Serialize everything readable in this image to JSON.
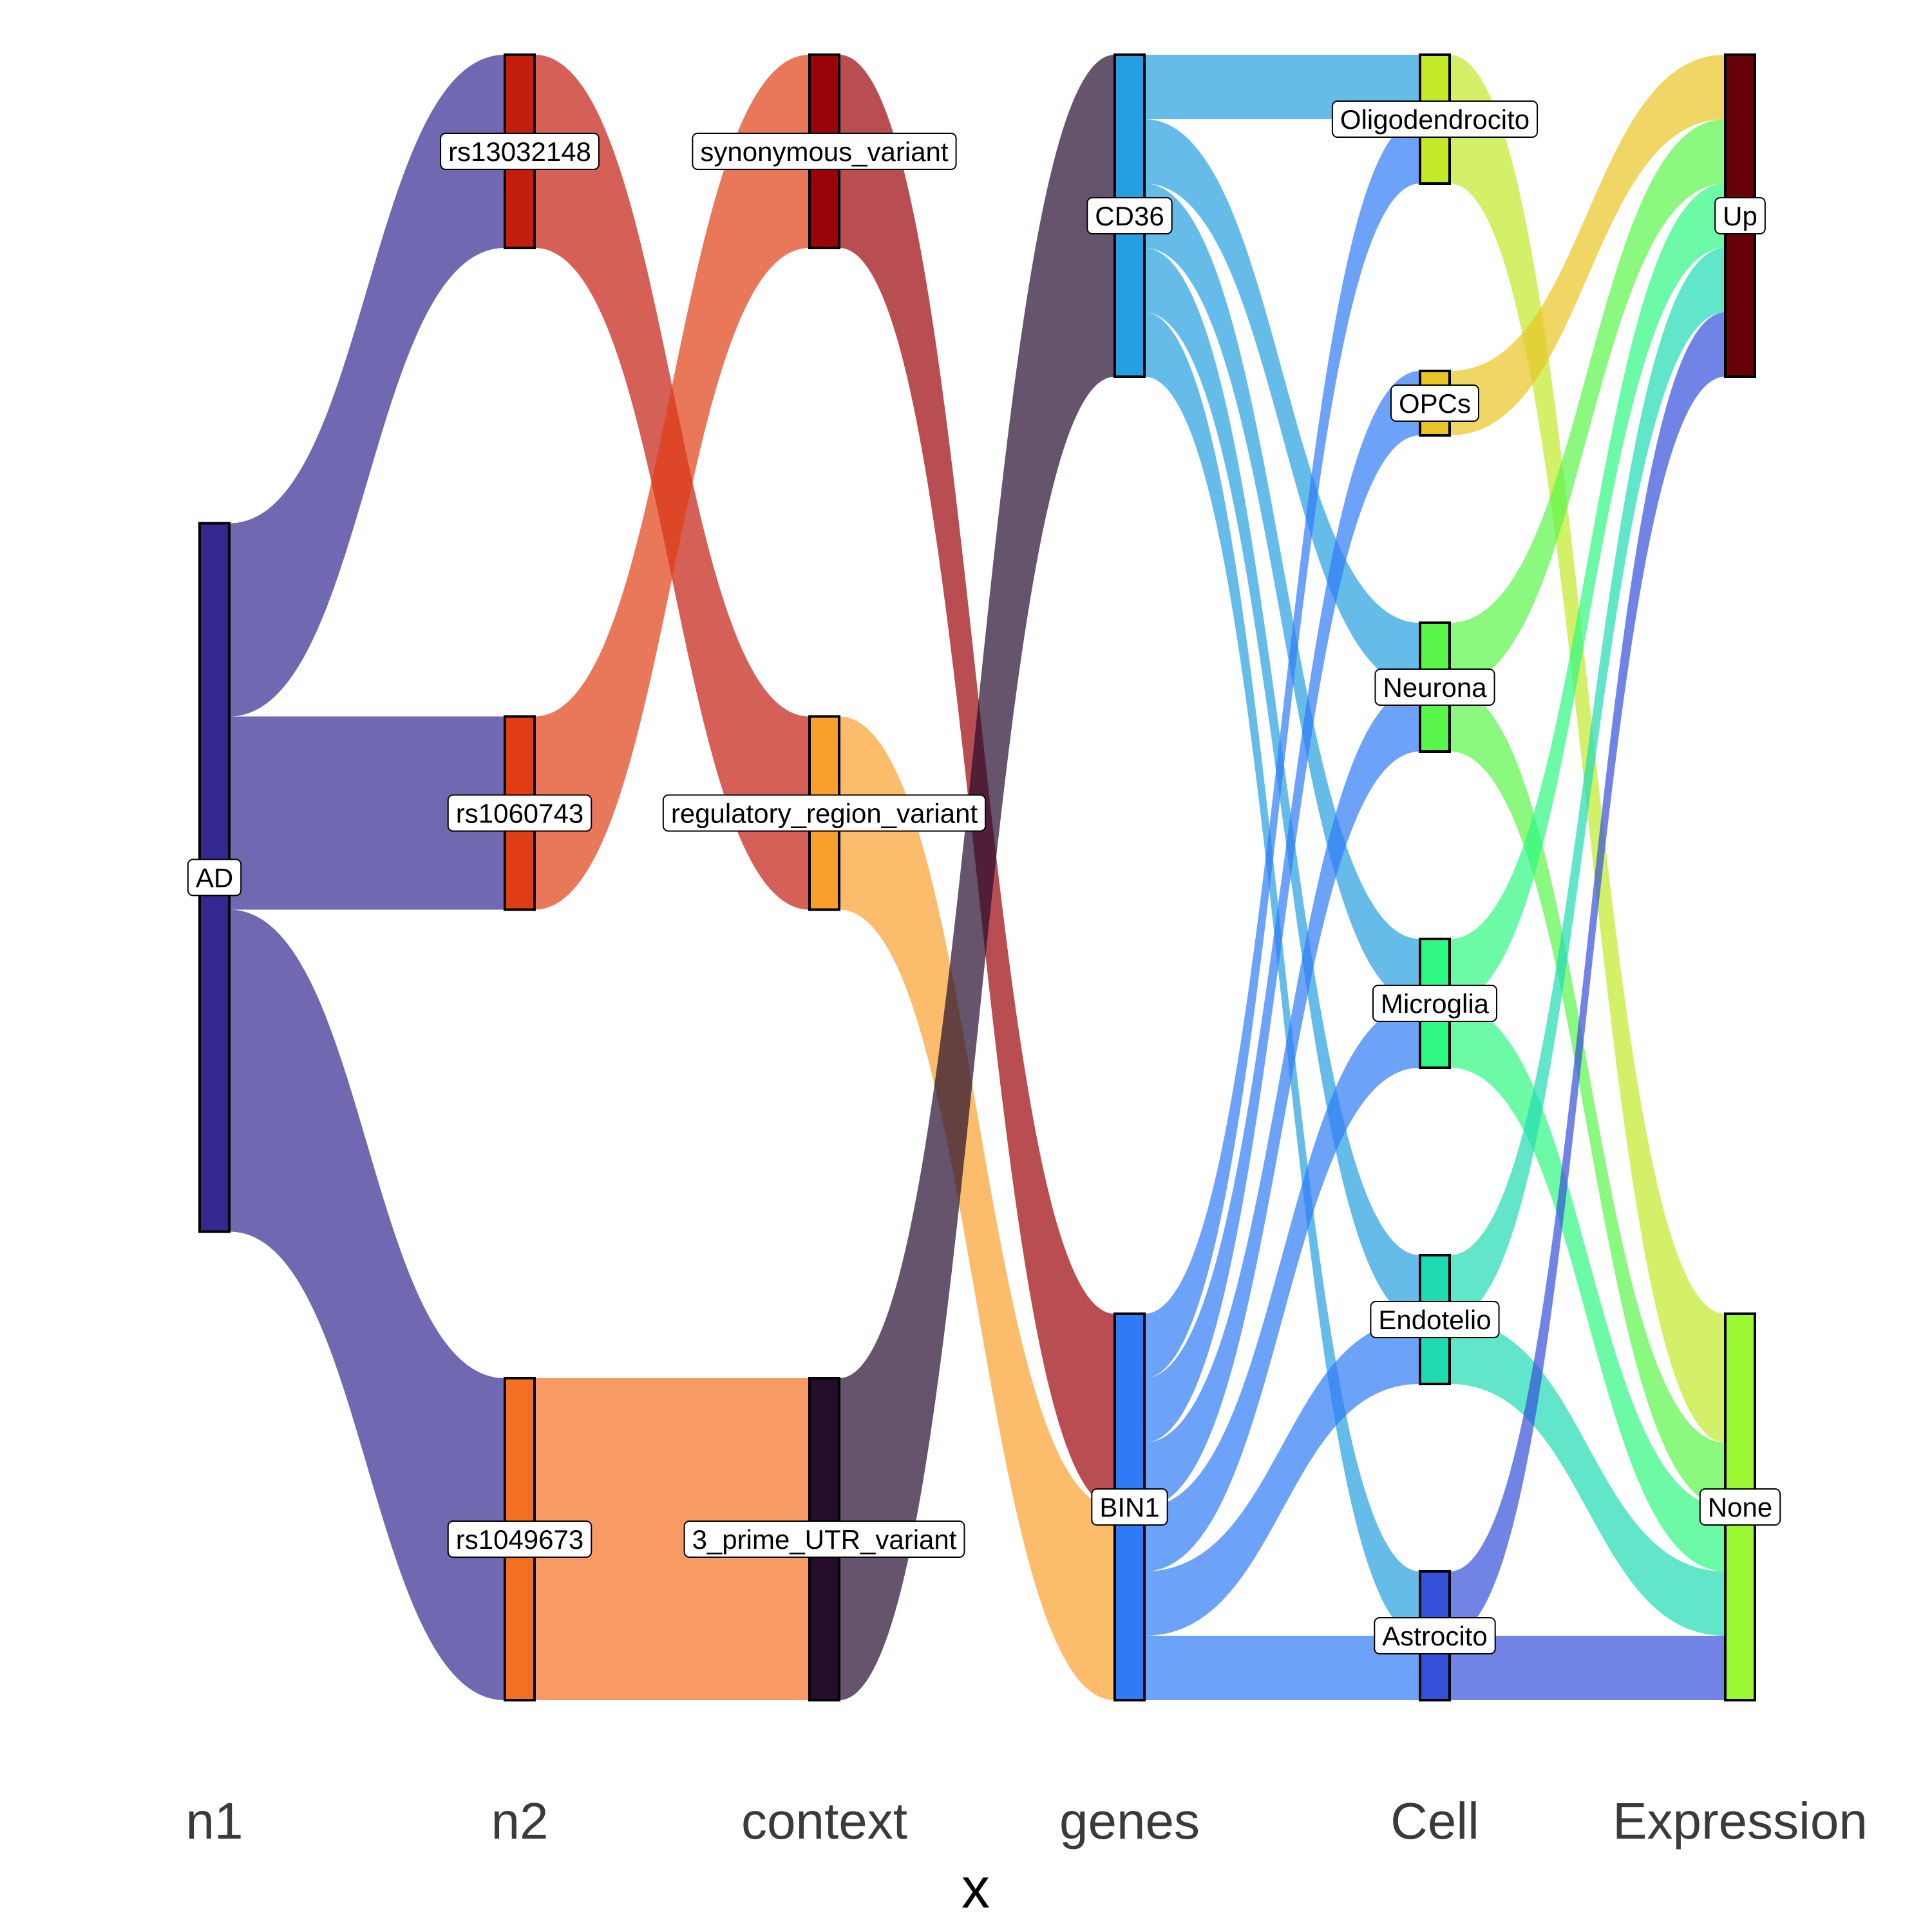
{
  "chart_data": {
    "type": "sankey",
    "xlabel": "x",
    "axes": [
      "n1",
      "n2",
      "context",
      "genes",
      "Cell",
      "Expression"
    ],
    "nodes": [
      {
        "id": "AD",
        "axis": 0,
        "label": "AD",
        "color": "#33288f"
      },
      {
        "id": "rs13032148",
        "axis": 1,
        "label": "rs13032148",
        "color": "#c31d0f"
      },
      {
        "id": "rs1060743",
        "axis": 1,
        "label": "rs1060743",
        "color": "#e03d14"
      },
      {
        "id": "rs1049673",
        "axis": 1,
        "label": "rs1049673",
        "color": "#f36f22"
      },
      {
        "id": "synonymous_variant",
        "axis": 2,
        "label": "synonymous_variant",
        "color": "#9a0307"
      },
      {
        "id": "regulatory_region_variant",
        "axis": 2,
        "label": "regulatory_region_variant",
        "color": "#f9a02c"
      },
      {
        "id": "3_prime_UTR_variant",
        "axis": 2,
        "label": "3_prime_UTR_variant",
        "color": "#230c2c"
      },
      {
        "id": "CD36",
        "axis": 3,
        "label": "CD36",
        "color": "#24a0e0"
      },
      {
        "id": "BIN1",
        "axis": 3,
        "label": "BIN1",
        "color": "#2f7bf7"
      },
      {
        "id": "Oligodendrocito",
        "axis": 4,
        "label": "Oligodendrocito",
        "color": "#c2ea28"
      },
      {
        "id": "OPCs",
        "axis": 4,
        "label": "OPCs",
        "color": "#e8c424"
      },
      {
        "id": "Neurona",
        "axis": 4,
        "label": "Neurona",
        "color": "#5af54a"
      },
      {
        "id": "Microglia",
        "axis": 4,
        "label": "Microglia",
        "color": "#2ef882"
      },
      {
        "id": "Endotelio",
        "axis": 4,
        "label": "Endotelio",
        "color": "#1fdbb4"
      },
      {
        "id": "Astrocito",
        "axis": 4,
        "label": "Astrocito",
        "color": "#3450da"
      },
      {
        "id": "Up",
        "axis": 5,
        "label": "Up",
        "color": "#650308"
      },
      {
        "id": "None",
        "axis": 5,
        "label": "None",
        "color": "#9af932"
      }
    ],
    "flows": [
      {
        "source": "AD",
        "target": "rs13032148",
        "value": 3,
        "color": "#33288f"
      },
      {
        "source": "AD",
        "target": "rs1060743",
        "value": 3,
        "color": "#33288f"
      },
      {
        "source": "AD",
        "target": "rs1049673",
        "value": 5,
        "color": "#33288f"
      },
      {
        "source": "rs13032148",
        "target": "regulatory_region_variant",
        "value": 3,
        "color": "#c31d0f"
      },
      {
        "source": "rs1060743",
        "target": "synonymous_variant",
        "value": 3,
        "color": "#e03d14"
      },
      {
        "source": "rs1049673",
        "target": "3_prime_UTR_variant",
        "value": 5,
        "color": "#f36f22"
      },
      {
        "source": "synonymous_variant",
        "target": "BIN1",
        "value": 3,
        "color": "#9a0307"
      },
      {
        "source": "regulatory_region_variant",
        "target": "BIN1",
        "value": 3,
        "color": "#f9a02c"
      },
      {
        "source": "3_prime_UTR_variant",
        "target": "CD36",
        "value": 5,
        "color": "#230c2c"
      },
      {
        "source": "CD36",
        "target": "Oligodendrocito",
        "value": 1,
        "color": "#24a0e0"
      },
      {
        "source": "CD36",
        "target": "Neurona",
        "value": 1,
        "color": "#24a0e0"
      },
      {
        "source": "CD36",
        "target": "Microglia",
        "value": 1,
        "color": "#24a0e0"
      },
      {
        "source": "CD36",
        "target": "Endotelio",
        "value": 1,
        "color": "#24a0e0"
      },
      {
        "source": "CD36",
        "target": "Astrocito",
        "value": 1,
        "color": "#24a0e0"
      },
      {
        "source": "BIN1",
        "target": "Oligodendrocito",
        "value": 1,
        "color": "#2f7bf7"
      },
      {
        "source": "BIN1",
        "target": "OPCs",
        "value": 1,
        "color": "#2f7bf7"
      },
      {
        "source": "BIN1",
        "target": "Neurona",
        "value": 1,
        "color": "#2f7bf7"
      },
      {
        "source": "BIN1",
        "target": "Microglia",
        "value": 1,
        "color": "#2f7bf7"
      },
      {
        "source": "BIN1",
        "target": "Endotelio",
        "value": 1,
        "color": "#2f7bf7"
      },
      {
        "source": "BIN1",
        "target": "Astrocito",
        "value": 1,
        "color": "#2f7bf7"
      },
      {
        "source": "Oligodendrocito",
        "target": "None",
        "value": 2,
        "color": "#c2ea28"
      },
      {
        "source": "OPCs",
        "target": "Up",
        "value": 1,
        "color": "#e8c424"
      },
      {
        "source": "Neurona",
        "target": "Up",
        "value": 1,
        "color": "#5af54a"
      },
      {
        "source": "Neurona",
        "target": "None",
        "value": 1,
        "color": "#5af54a"
      },
      {
        "source": "Microglia",
        "target": "Up",
        "value": 1,
        "color": "#2ef882"
      },
      {
        "source": "Microglia",
        "target": "None",
        "value": 1,
        "color": "#2ef882"
      },
      {
        "source": "Endotelio",
        "target": "Up",
        "value": 1,
        "color": "#1fdbb4"
      },
      {
        "source": "Endotelio",
        "target": "None",
        "value": 1,
        "color": "#1fdbb4"
      },
      {
        "source": "Astrocito",
        "target": "Up",
        "value": 1,
        "color": "#3450da"
      },
      {
        "source": "Astrocito",
        "target": "None",
        "value": 1,
        "color": "#3450da"
      }
    ]
  }
}
